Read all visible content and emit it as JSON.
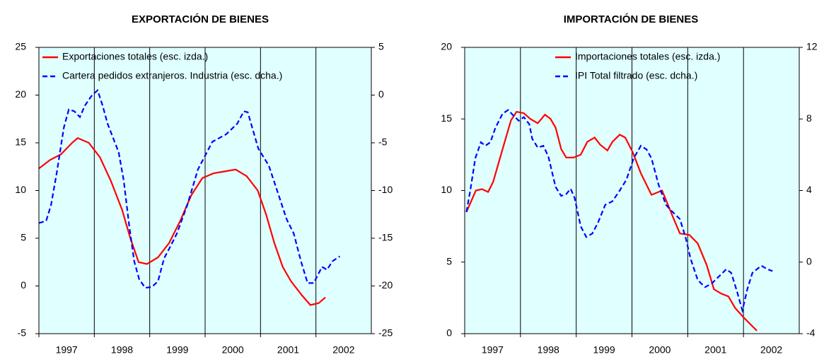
{
  "chart_data": [
    {
      "type": "line",
      "title": "EXPORTACIÓN DE BIENES",
      "legend": "upper left",
      "xlim": [
        1997,
        2003
      ],
      "xticks": [
        1997,
        1998,
        1999,
        2000,
        2001,
        2002
      ],
      "ylim": [
        -5,
        25
      ],
      "yticks": [
        -5,
        0,
        5,
        10,
        15,
        20,
        25
      ],
      "y2lim": [
        -25,
        5
      ],
      "y2ticks": [
        -25,
        -20,
        -15,
        -10,
        -5,
        0,
        5
      ],
      "grid": true,
      "background": "#e0ffff",
      "series": [
        {
          "name": "Exportaciones totales (esc. izda.)",
          "color": "#ff0000",
          "dash": false,
          "x": [
            1997.0,
            1997.2,
            1997.4,
            1997.6,
            1997.7,
            1997.9,
            1998.1,
            1998.3,
            1998.5,
            1998.65,
            1998.8,
            1998.95,
            1999.15,
            1999.35,
            1999.55,
            1999.75,
            1999.95,
            2000.15,
            2000.35,
            2000.55,
            2000.75,
            2000.95,
            2001.1,
            2001.25,
            2001.4,
            2001.55,
            2001.75,
            2001.9,
            2002.05,
            2002.17
          ],
          "values": [
            12.3,
            13.2,
            13.8,
            15.0,
            15.5,
            15.0,
            13.5,
            11,
            8,
            5,
            2.5,
            2.3,
            3,
            4.5,
            6.8,
            9.5,
            11.3,
            11.8,
            12.0,
            12.2,
            11.5,
            10,
            7.5,
            4.5,
            2,
            0.5,
            -1,
            -2,
            -1.8,
            -1.2
          ]
        },
        {
          "name": "Cartera pedidos extranjeros. Industria (esc. dcha.)",
          "color": "#0000ff",
          "dash": true,
          "axis": "y2",
          "x": [
            1997.0,
            1997.13,
            1997.22,
            1997.32,
            1997.45,
            1997.54,
            1997.64,
            1997.74,
            1997.83,
            1997.96,
            1998.06,
            1998.15,
            1998.24,
            1998.34,
            1998.44,
            1998.53,
            1998.63,
            1998.72,
            1998.81,
            1998.92,
            1999.04,
            1999.15,
            1999.26,
            1999.36,
            1999.49,
            1999.68,
            1999.87,
            2000.13,
            2000.38,
            2000.58,
            2000.7,
            2000.77,
            2000.96,
            2001.15,
            2001.3,
            2001.47,
            2001.6,
            2001.73,
            2001.85,
            2001.96,
            2002.11,
            2002.2,
            2002.3,
            2002.43
          ],
          "values": [
            -13.4,
            -13.2,
            -11.5,
            -8.2,
            -3.4,
            -1.5,
            -1.7,
            -2.3,
            -1.1,
            0,
            0.5,
            -1.1,
            -3,
            -4.5,
            -6,
            -8.9,
            -13.7,
            -17.4,
            -19.3,
            -20.2,
            -20.1,
            -19.5,
            -17.1,
            -16,
            -14.5,
            -11.5,
            -7.8,
            -4.9,
            -4.1,
            -3,
            -1.7,
            -1.8,
            -5.6,
            -7.4,
            -10,
            -13,
            -14.5,
            -17.4,
            -19.7,
            -19.7,
            -18,
            -18.3,
            -17.4,
            -16.9
          ]
        }
      ]
    },
    {
      "type": "line",
      "title": "IMPORTACIÓN DE BIENES",
      "legend": "upper right",
      "xlim": [
        1997,
        2003
      ],
      "xticks": [
        1997,
        1998,
        1999,
        2000,
        2001,
        2002
      ],
      "ylim": [
        0,
        20
      ],
      "yticks": [
        0,
        5,
        10,
        15,
        20
      ],
      "y2lim": [
        -4,
        12
      ],
      "y2ticks": [
        -4,
        0,
        4,
        8,
        12
      ],
      "grid": true,
      "background": "#e0ffff",
      "series": [
        {
          "name": "Importaciones totales (esc. izda.)",
          "color": "#ff0000",
          "dash": false,
          "x": [
            1997.03,
            1997.2,
            1997.31,
            1997.42,
            1997.51,
            1997.68,
            1997.83,
            1997.93,
            1998.06,
            1998.18,
            1998.31,
            1998.44,
            1998.54,
            1998.63,
            1998.73,
            1998.82,
            1998.95,
            1999.08,
            1999.2,
            1999.33,
            1999.43,
            1999.56,
            1999.65,
            1999.78,
            1999.88,
            2000.01,
            2000.16,
            2000.35,
            2000.54,
            2000.73,
            2000.86,
            2001.03,
            2001.18,
            2001.34,
            2001.47,
            2001.6,
            2001.73,
            2001.85,
            2002.01,
            2002.24
          ],
          "values": [
            8.5,
            10,
            10.1,
            9.9,
            10.6,
            12.9,
            14.9,
            15.5,
            15.4,
            15,
            14.7,
            15.3,
            15,
            14.4,
            12.9,
            12.3,
            12.3,
            12.5,
            13.4,
            13.7,
            13.2,
            12.8,
            13.4,
            13.9,
            13.7,
            12.7,
            11.2,
            9.7,
            10,
            8.2,
            7,
            6.9,
            6.3,
            4.8,
            3.1,
            2.8,
            2.6,
            1.8,
            1.1,
            0.2
          ]
        },
        {
          "name": "IPI Total filtrado (esc. dcha.)",
          "color": "#0000ff",
          "dash": true,
          "axis": "y2",
          "x": [
            1997.03,
            1997.1,
            1997.19,
            1997.29,
            1997.37,
            1997.46,
            1997.55,
            1997.68,
            1997.78,
            1997.87,
            1997.97,
            1998.06,
            1998.16,
            1998.21,
            1998.31,
            1998.41,
            1998.5,
            1998.63,
            1998.73,
            1998.82,
            1998.9,
            1998.97,
            1999.08,
            1999.18,
            1999.29,
            1999.39,
            1999.52,
            1999.65,
            1999.78,
            1999.9,
            2000.03,
            2000.16,
            2000.26,
            2000.35,
            2000.48,
            2000.61,
            2000.73,
            2000.86,
            2000.96,
            2001.05,
            2001.18,
            2001.31,
            2001.43,
            2001.56,
            2001.69,
            2001.78,
            2001.88,
            2001.98,
            2002.07,
            2002.16,
            2002.32,
            2002.43,
            2002.52
          ],
          "values": [
            2.8,
            4,
            5.8,
            6.7,
            6.5,
            6.7,
            7.5,
            8.3,
            8.5,
            8.2,
            7.9,
            8.1,
            7.7,
            6.9,
            6.4,
            6.5,
            5.9,
            4.2,
            3.7,
            3.8,
            4.1,
            3.6,
            2,
            1.4,
            1.6,
            2.2,
            3.2,
            3.4,
            4,
            4.6,
            5.8,
            6.5,
            6.3,
            5.8,
            4.3,
            3.2,
            2.8,
            2.4,
            1.4,
            0.2,
            -1,
            -1.4,
            -1.2,
            -0.8,
            -0.4,
            -0.6,
            -1.6,
            -2.7,
            -1.5,
            -0.6,
            -0.2,
            -0.4,
            -0.5
          ]
        }
      ]
    }
  ]
}
